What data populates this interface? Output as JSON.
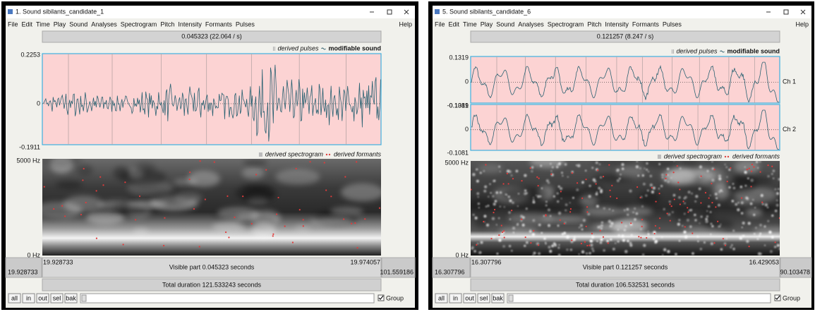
{
  "windows": [
    {
      "title": "1. Sound sibilants_candidate_1",
      "menu": [
        "File",
        "Edit",
        "Time",
        "Play",
        "Sound",
        "Analyses",
        "Spectrogram",
        "Pitch",
        "Intensity",
        "Formants",
        "Pulses"
      ],
      "help": "Help",
      "selection": "0.045323 (22.064 / s)",
      "legend_pulses": "derived pulses",
      "legend_sound": "modifiable sound",
      "channels": [
        {
          "max": "0.2253",
          "zero": "0",
          "min": "-0.1911"
        }
      ],
      "legend_spectrogram": "derived spectrogram",
      "legend_formants": "derived formants",
      "freq_max": "5000 Hz",
      "freq_min": "0 Hz",
      "window_start": "19.928733",
      "visible_start": "19.928733",
      "visible_part": "Visible part 0.045323 seconds",
      "visible_end": "19.974057",
      "window_end": "101.559186",
      "total_duration": "Total duration 121.533243 seconds",
      "buttons": [
        "all",
        "in",
        "out",
        "sel",
        "bak"
      ],
      "group": "Group"
    },
    {
      "title": "5. Sound sibilants_candidate_6",
      "menu": [
        "File",
        "Edit",
        "Time",
        "Play",
        "Sound",
        "Analyses",
        "Spectrogram",
        "Pitch",
        "Intensity",
        "Formants",
        "Pulses"
      ],
      "help": "Help",
      "selection": "0.121257 (8.247 / s)",
      "legend_pulses": "derived pulses",
      "legend_sound": "modifiable sound",
      "channels": [
        {
          "max": "0.1319",
          "zero": "0",
          "min": "-0.1081",
          "label": "Ch 1"
        },
        {
          "max": "0.1319",
          "zero": "0",
          "min": "-0.1081",
          "label": "Ch 2"
        }
      ],
      "legend_spectrogram": "derived spectrogram",
      "legend_formants": "derived formants",
      "freq_max": "5000 Hz",
      "freq_min": "0 Hz",
      "window_start": "16.307796",
      "visible_start": "16.307796",
      "visible_part": "Visible part 0.121257 seconds",
      "visible_end": "16.429053",
      "window_end": "90.103478",
      "total_duration": "Total duration 106.532531 seconds",
      "buttons": [
        "all",
        "in",
        "out",
        "sel",
        "bak"
      ],
      "group": "Group"
    }
  ]
}
